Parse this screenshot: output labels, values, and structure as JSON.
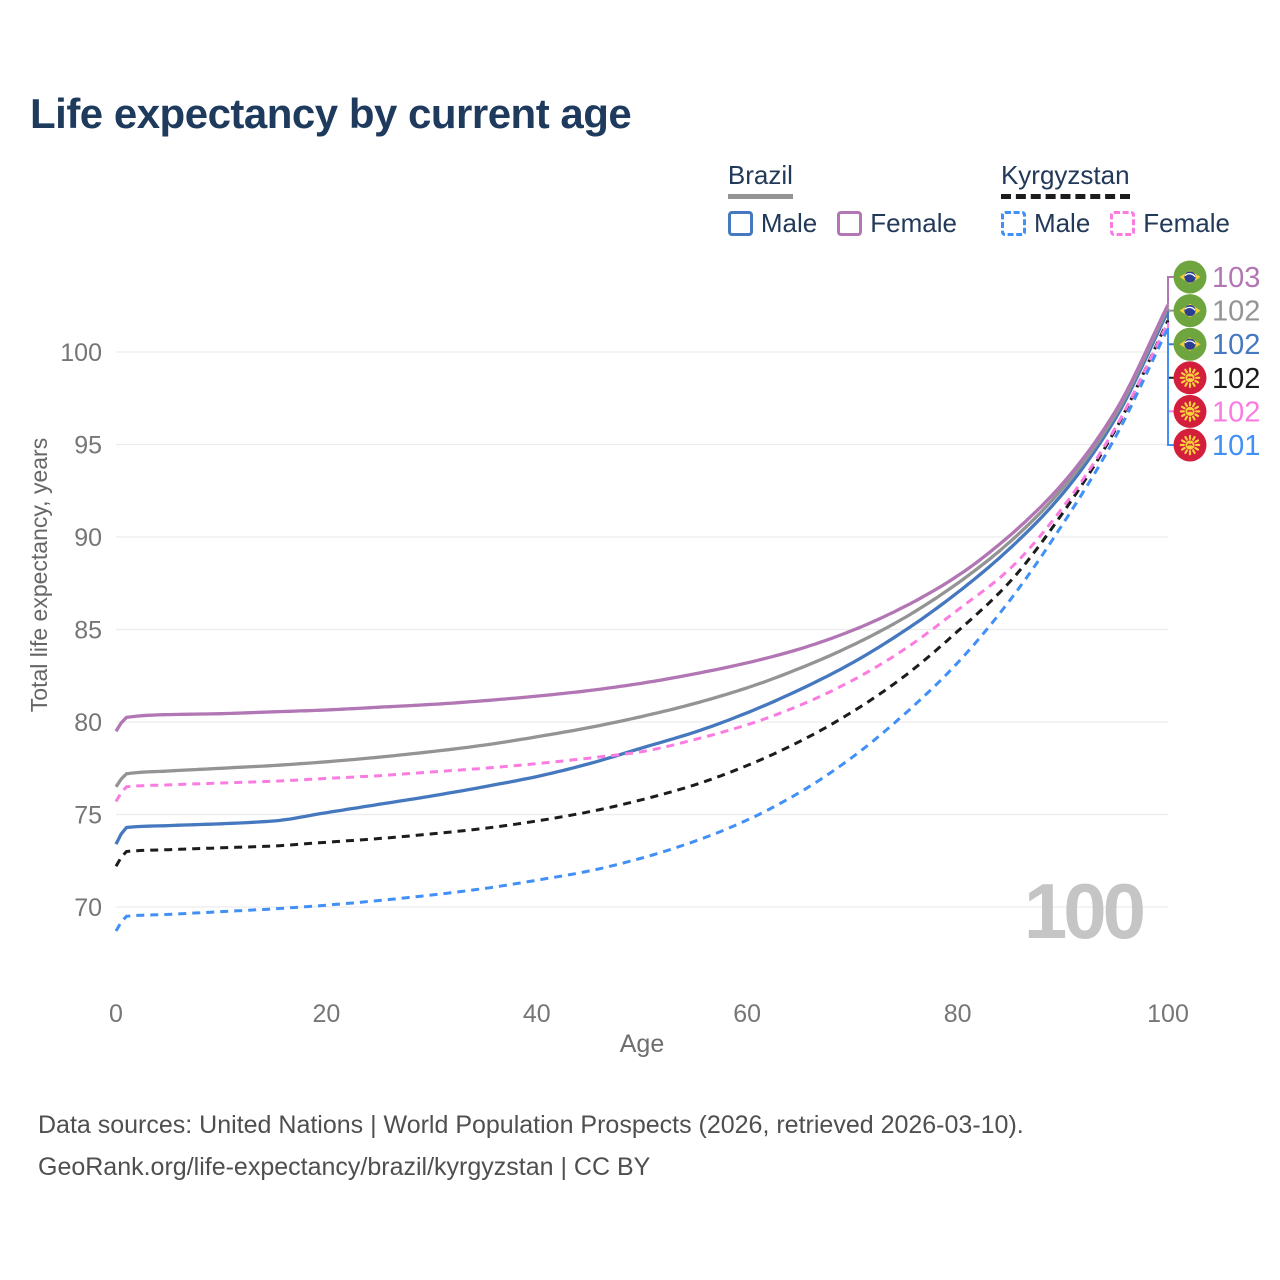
{
  "title": "Life expectancy by current age",
  "legend": {
    "groups": [
      {
        "country": "Brazil",
        "underline_series": "brazil_all",
        "items": [
          {
            "label": "Male",
            "series": "brazil_male"
          },
          {
            "label": "Female",
            "series": "brazil_female"
          }
        ]
      },
      {
        "country": "Kyrgyzstan",
        "underline_series": "kyrgyzstan_all",
        "items": [
          {
            "label": "Male",
            "series": "kyrgyzstan_male"
          },
          {
            "label": "Female",
            "series": "kyrgyzstan_female"
          }
        ]
      }
    ]
  },
  "watermark": "100",
  "chart_data": {
    "type": "line",
    "title": "Life expectancy by current age",
    "xlabel": "Age",
    "ylabel": "Total life expectancy, years",
    "x_ticks": [
      0,
      20,
      40,
      60,
      80,
      100
    ],
    "y_ticks": [
      70,
      75,
      80,
      85,
      90,
      95,
      100
    ],
    "xlim": [
      0,
      100
    ],
    "ylim": [
      68,
      103.5
    ],
    "grid": "horizontal-only",
    "ages": [
      0,
      1,
      5,
      10,
      15,
      20,
      25,
      30,
      35,
      40,
      45,
      50,
      55,
      60,
      65,
      70,
      75,
      80,
      85,
      90,
      95,
      100
    ],
    "series": [
      {
        "key": "brazil_female",
        "name": "Brazil Female",
        "color": "#b176b3",
        "dashed": false,
        "icon": "brazil-flag-icon",
        "end_label": "103",
        "values": [
          79.5,
          80.25,
          80.4,
          80.45,
          80.55,
          80.65,
          80.8,
          80.95,
          81.15,
          81.4,
          81.7,
          82.1,
          82.6,
          83.2,
          83.95,
          84.95,
          86.25,
          87.9,
          90.1,
          92.9,
          96.8,
          102.55
        ]
      },
      {
        "key": "brazil_all",
        "name": "Brazil",
        "color": "#949494",
        "dashed": false,
        "icon": "brazil-flag-icon",
        "end_label": "102",
        "values": [
          76.5,
          77.2,
          77.35,
          77.5,
          77.65,
          77.85,
          78.1,
          78.4,
          78.75,
          79.2,
          79.7,
          80.3,
          81.0,
          81.85,
          82.9,
          84.15,
          85.65,
          87.5,
          89.75,
          92.65,
          96.6,
          102.4
        ]
      },
      {
        "key": "brazil_male",
        "name": "Brazil Male",
        "color": "#4678bf",
        "dashed": false,
        "icon": "brazil-flag-icon",
        "end_label": "102",
        "values": [
          73.4,
          74.3,
          74.4,
          74.5,
          74.65,
          75.1,
          75.55,
          76.0,
          76.5,
          77.05,
          77.75,
          78.6,
          79.45,
          80.5,
          81.75,
          83.2,
          84.95,
          87.0,
          89.4,
          92.35,
          96.4,
          102.2
        ]
      },
      {
        "key": "kyrgyzstan_all",
        "name": "Kyrgyzstan",
        "color": "#1c1c1c",
        "dashed": true,
        "icon": "kyrgyzstan-flag-icon",
        "end_label": "102",
        "values": [
          72.2,
          73.0,
          73.1,
          73.2,
          73.3,
          73.5,
          73.7,
          73.95,
          74.25,
          74.65,
          75.15,
          75.8,
          76.6,
          77.65,
          78.95,
          80.55,
          82.5,
          84.9,
          87.6,
          91.3,
          95.8,
          101.7
        ]
      },
      {
        "key": "kyrgyzstan_female",
        "name": "Kyrgyzstan Female",
        "color": "#fb7ce1",
        "dashed": true,
        "icon": "kyrgyzstan-flag-icon",
        "end_label": "102",
        "values": [
          75.7,
          76.5,
          76.6,
          76.7,
          76.8,
          76.95,
          77.1,
          77.3,
          77.5,
          77.75,
          78.05,
          78.4,
          79.05,
          79.85,
          80.9,
          82.25,
          83.95,
          86.05,
          88.3,
          91.6,
          95.9,
          101.6
        ]
      },
      {
        "key": "kyrgyzstan_male",
        "name": "Kyrgyzstan Male",
        "color": "#4190f7",
        "dashed": true,
        "icon": "kyrgyzstan-flag-icon",
        "end_label": "101",
        "values": [
          68.7,
          69.5,
          69.6,
          69.75,
          69.9,
          70.1,
          70.35,
          70.65,
          71.0,
          71.45,
          71.95,
          72.65,
          73.55,
          74.7,
          76.2,
          78.1,
          80.45,
          83.2,
          86.6,
          90.7,
          95.4,
          101.3
        ]
      }
    ]
  },
  "footer": {
    "line1": "Data sources: United Nations | World Population Prospects (2026, retrieved 2026-03-10).",
    "line2": "GeoRank.org/life-expectancy/brazil/kyrgyzstan | CC BY"
  }
}
